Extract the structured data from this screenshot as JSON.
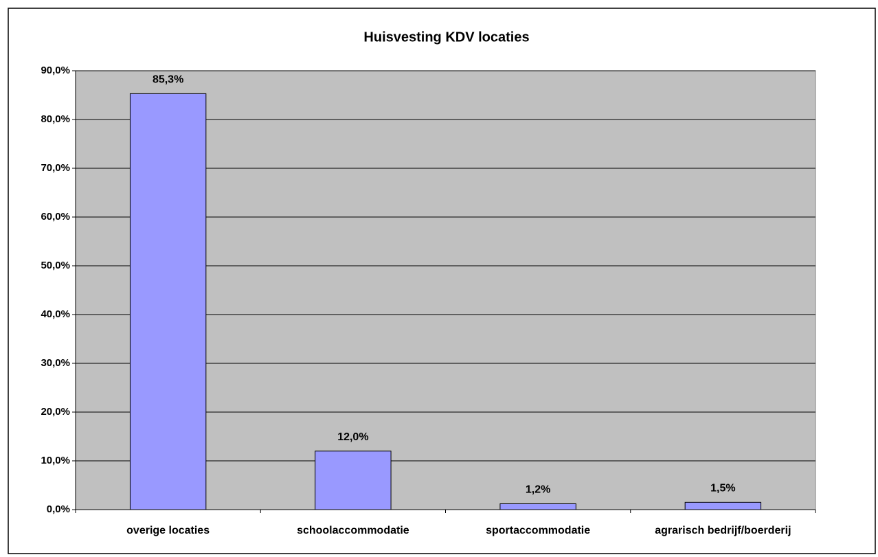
{
  "chart_data": {
    "type": "bar",
    "title": "Huisvesting KDV locaties",
    "categories": [
      "overige locaties",
      "schoolaccommodatie",
      "sportaccommodatie",
      "agrarisch bedrijf/boerderij"
    ],
    "values": [
      85.3,
      12.0,
      1.2,
      1.5
    ],
    "value_labels": [
      "85,3%",
      "12,0%",
      "1,2%",
      "1,5%"
    ],
    "color": "#9999ff",
    "ylim": [
      0,
      90
    ],
    "yticks": [
      {
        "value": 0,
        "label": "0,0%"
      },
      {
        "value": 10,
        "label": "10,0%"
      },
      {
        "value": 20,
        "label": "20,0%"
      },
      {
        "value": 30,
        "label": "30,0%"
      },
      {
        "value": 40,
        "label": "40,0%"
      },
      {
        "value": 50,
        "label": "50,0%"
      },
      {
        "value": 60,
        "label": "60,0%"
      },
      {
        "value": 70,
        "label": "70,0%"
      },
      {
        "value": 80,
        "label": "80,0%"
      },
      {
        "value": 90,
        "label": "90,0%"
      }
    ],
    "grid": true
  }
}
